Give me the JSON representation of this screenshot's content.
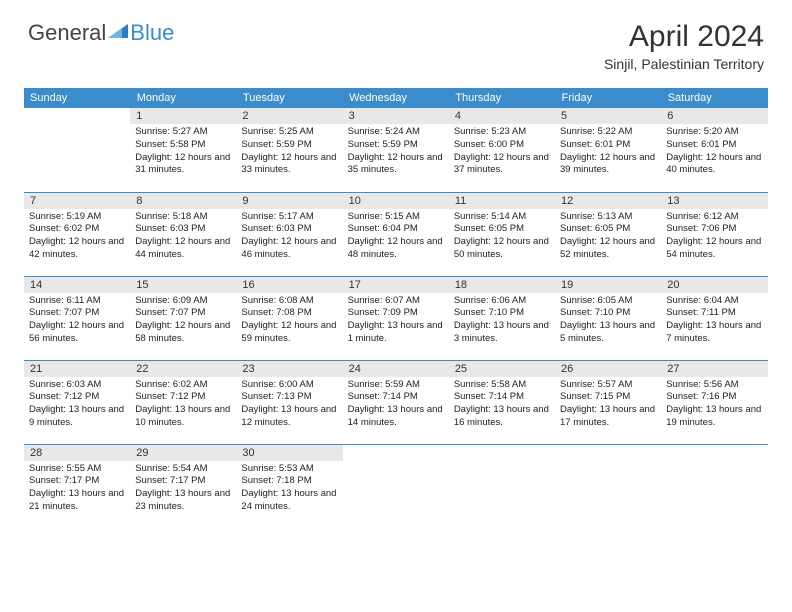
{
  "logo": {
    "text_general": "General",
    "text_blue": "Blue"
  },
  "title": "April 2024",
  "subtitle": "Sinjil, Palestinian Territory",
  "styling": {
    "header_bg": "#3b8ccb",
    "header_fg": "#ffffff",
    "daynum_bg": "#e8e8e8",
    "border_color": "#3b8ccb",
    "title_fontsize": 30,
    "subtitle_fontsize": 14,
    "dayheader_fontsize": 11,
    "daytext_fontsize": 9.5,
    "page_bg": "#ffffff"
  },
  "day_headers": [
    "Sunday",
    "Monday",
    "Tuesday",
    "Wednesday",
    "Thursday",
    "Friday",
    "Saturday"
  ],
  "weeks": [
    [
      {
        "n": "",
        "sr": "",
        "ss": "",
        "dl": ""
      },
      {
        "n": "1",
        "sr": "Sunrise: 5:27 AM",
        "ss": "Sunset: 5:58 PM",
        "dl": "Daylight: 12 hours and 31 minutes."
      },
      {
        "n": "2",
        "sr": "Sunrise: 5:25 AM",
        "ss": "Sunset: 5:59 PM",
        "dl": "Daylight: 12 hours and 33 minutes."
      },
      {
        "n": "3",
        "sr": "Sunrise: 5:24 AM",
        "ss": "Sunset: 5:59 PM",
        "dl": "Daylight: 12 hours and 35 minutes."
      },
      {
        "n": "4",
        "sr": "Sunrise: 5:23 AM",
        "ss": "Sunset: 6:00 PM",
        "dl": "Daylight: 12 hours and 37 minutes."
      },
      {
        "n": "5",
        "sr": "Sunrise: 5:22 AM",
        "ss": "Sunset: 6:01 PM",
        "dl": "Daylight: 12 hours and 39 minutes."
      },
      {
        "n": "6",
        "sr": "Sunrise: 5:20 AM",
        "ss": "Sunset: 6:01 PM",
        "dl": "Daylight: 12 hours and 40 minutes."
      }
    ],
    [
      {
        "n": "7",
        "sr": "Sunrise: 5:19 AM",
        "ss": "Sunset: 6:02 PM",
        "dl": "Daylight: 12 hours and 42 minutes."
      },
      {
        "n": "8",
        "sr": "Sunrise: 5:18 AM",
        "ss": "Sunset: 6:03 PM",
        "dl": "Daylight: 12 hours and 44 minutes."
      },
      {
        "n": "9",
        "sr": "Sunrise: 5:17 AM",
        "ss": "Sunset: 6:03 PM",
        "dl": "Daylight: 12 hours and 46 minutes."
      },
      {
        "n": "10",
        "sr": "Sunrise: 5:15 AM",
        "ss": "Sunset: 6:04 PM",
        "dl": "Daylight: 12 hours and 48 minutes."
      },
      {
        "n": "11",
        "sr": "Sunrise: 5:14 AM",
        "ss": "Sunset: 6:05 PM",
        "dl": "Daylight: 12 hours and 50 minutes."
      },
      {
        "n": "12",
        "sr": "Sunrise: 5:13 AM",
        "ss": "Sunset: 6:05 PM",
        "dl": "Daylight: 12 hours and 52 minutes."
      },
      {
        "n": "13",
        "sr": "Sunrise: 6:12 AM",
        "ss": "Sunset: 7:06 PM",
        "dl": "Daylight: 12 hours and 54 minutes."
      }
    ],
    [
      {
        "n": "14",
        "sr": "Sunrise: 6:11 AM",
        "ss": "Sunset: 7:07 PM",
        "dl": "Daylight: 12 hours and 56 minutes."
      },
      {
        "n": "15",
        "sr": "Sunrise: 6:09 AM",
        "ss": "Sunset: 7:07 PM",
        "dl": "Daylight: 12 hours and 58 minutes."
      },
      {
        "n": "16",
        "sr": "Sunrise: 6:08 AM",
        "ss": "Sunset: 7:08 PM",
        "dl": "Daylight: 12 hours and 59 minutes."
      },
      {
        "n": "17",
        "sr": "Sunrise: 6:07 AM",
        "ss": "Sunset: 7:09 PM",
        "dl": "Daylight: 13 hours and 1 minute."
      },
      {
        "n": "18",
        "sr": "Sunrise: 6:06 AM",
        "ss": "Sunset: 7:10 PM",
        "dl": "Daylight: 13 hours and 3 minutes."
      },
      {
        "n": "19",
        "sr": "Sunrise: 6:05 AM",
        "ss": "Sunset: 7:10 PM",
        "dl": "Daylight: 13 hours and 5 minutes."
      },
      {
        "n": "20",
        "sr": "Sunrise: 6:04 AM",
        "ss": "Sunset: 7:11 PM",
        "dl": "Daylight: 13 hours and 7 minutes."
      }
    ],
    [
      {
        "n": "21",
        "sr": "Sunrise: 6:03 AM",
        "ss": "Sunset: 7:12 PM",
        "dl": "Daylight: 13 hours and 9 minutes."
      },
      {
        "n": "22",
        "sr": "Sunrise: 6:02 AM",
        "ss": "Sunset: 7:12 PM",
        "dl": "Daylight: 13 hours and 10 minutes."
      },
      {
        "n": "23",
        "sr": "Sunrise: 6:00 AM",
        "ss": "Sunset: 7:13 PM",
        "dl": "Daylight: 13 hours and 12 minutes."
      },
      {
        "n": "24",
        "sr": "Sunrise: 5:59 AM",
        "ss": "Sunset: 7:14 PM",
        "dl": "Daylight: 13 hours and 14 minutes."
      },
      {
        "n": "25",
        "sr": "Sunrise: 5:58 AM",
        "ss": "Sunset: 7:14 PM",
        "dl": "Daylight: 13 hours and 16 minutes."
      },
      {
        "n": "26",
        "sr": "Sunrise: 5:57 AM",
        "ss": "Sunset: 7:15 PM",
        "dl": "Daylight: 13 hours and 17 minutes."
      },
      {
        "n": "27",
        "sr": "Sunrise: 5:56 AM",
        "ss": "Sunset: 7:16 PM",
        "dl": "Daylight: 13 hours and 19 minutes."
      }
    ],
    [
      {
        "n": "28",
        "sr": "Sunrise: 5:55 AM",
        "ss": "Sunset: 7:17 PM",
        "dl": "Daylight: 13 hours and 21 minutes."
      },
      {
        "n": "29",
        "sr": "Sunrise: 5:54 AM",
        "ss": "Sunset: 7:17 PM",
        "dl": "Daylight: 13 hours and 23 minutes."
      },
      {
        "n": "30",
        "sr": "Sunrise: 5:53 AM",
        "ss": "Sunset: 7:18 PM",
        "dl": "Daylight: 13 hours and 24 minutes."
      },
      {
        "n": "",
        "sr": "",
        "ss": "",
        "dl": ""
      },
      {
        "n": "",
        "sr": "",
        "ss": "",
        "dl": ""
      },
      {
        "n": "",
        "sr": "",
        "ss": "",
        "dl": ""
      },
      {
        "n": "",
        "sr": "",
        "ss": "",
        "dl": ""
      }
    ]
  ]
}
